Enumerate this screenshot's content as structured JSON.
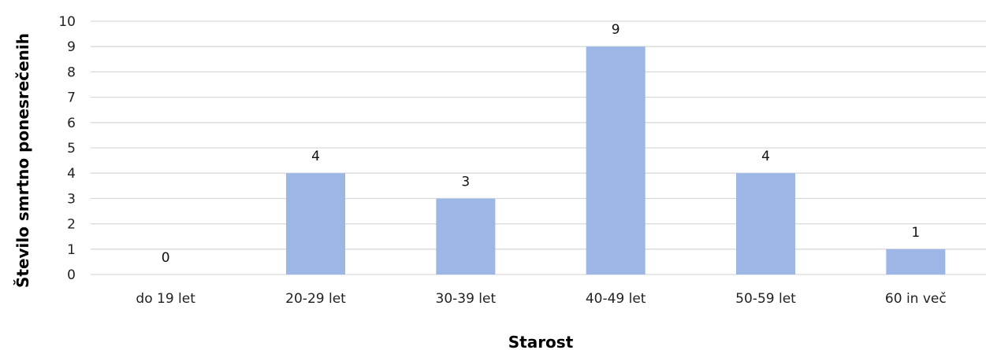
{
  "chart_data": {
    "type": "bar",
    "categories": [
      "do 19 let",
      "20-29 let",
      "30-39 let",
      "40-49 let",
      "50-59 let",
      "60 in več"
    ],
    "values": [
      0,
      4,
      3,
      9,
      4,
      1
    ],
    "xlabel": "Starost",
    "ylabel": "Število smrtno ponesrečenih",
    "ylim": [
      0,
      10
    ],
    "yticks": [
      0,
      1,
      2,
      3,
      4,
      5,
      6,
      7,
      8,
      9,
      10
    ],
    "grid": true,
    "bar_color": "#9cb6e6",
    "grid_color": "#d9d9d9"
  }
}
